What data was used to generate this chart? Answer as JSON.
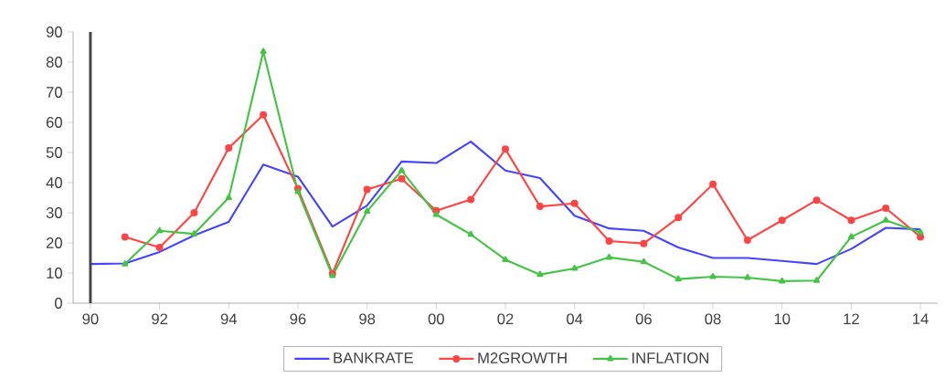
{
  "chart_data": {
    "type": "line",
    "x": [
      1990,
      1991,
      1992,
      1993,
      1994,
      1995,
      1996,
      1997,
      1998,
      1999,
      2000,
      2001,
      2002,
      2003,
      2004,
      2005,
      2006,
      2007,
      2008,
      2009,
      2010,
      2011,
      2012,
      2013,
      2014
    ],
    "series": [
      {
        "name": "BANKRATE",
        "color": "#4444ff",
        "marker": "none",
        "values": [
          13,
          13.2,
          17,
          22.5,
          27,
          46,
          42,
          25.4,
          32.4,
          47,
          46.5,
          53.6,
          44,
          41.5,
          29,
          24.8,
          24,
          18.5,
          15,
          15,
          14,
          13,
          18,
          25,
          24.5
        ]
      },
      {
        "name": "M2GROWTH",
        "color": "#ff4444",
        "marker": "circle",
        "values": [
          null,
          22,
          18.5,
          30,
          51.5,
          62.5,
          38,
          9.8,
          37.7,
          41.3,
          30.7,
          34.4,
          51.1,
          32.1,
          33.1,
          20.6,
          19.8,
          28.4,
          39.5,
          20.9,
          27.5,
          34.2,
          27.5,
          31.5,
          22
        ]
      },
      {
        "name": "INFLATION",
        "color": "#44c444",
        "marker": "triangle",
        "values": [
          null,
          13,
          24,
          23,
          35,
          83.5,
          37,
          9.1,
          30.5,
          44,
          29.4,
          22.8,
          14.4,
          9.5,
          11.5,
          15.2,
          13.7,
          8,
          8.8,
          8.5,
          7.3,
          7.5,
          22,
          27.5,
          23.5
        ]
      }
    ],
    "xlim": [
      1989.5,
      2014.5
    ],
    "xticks": [
      {
        "value": 1990,
        "label": "90"
      },
      {
        "value": 1992,
        "label": "92"
      },
      {
        "value": 1994,
        "label": "94"
      },
      {
        "value": 1996,
        "label": "96"
      },
      {
        "value": 1998,
        "label": "98"
      },
      {
        "value": 2000,
        "label": "00"
      },
      {
        "value": 2002,
        "label": "02"
      },
      {
        "value": 2004,
        "label": "04"
      },
      {
        "value": 2006,
        "label": "06"
      },
      {
        "value": 2008,
        "label": "08"
      },
      {
        "value": 2010,
        "label": "10"
      },
      {
        "value": 2012,
        "label": "12"
      },
      {
        "value": 2014,
        "label": "14"
      }
    ],
    "ylim": [
      0,
      90
    ],
    "yticks": [
      0,
      10,
      20,
      30,
      40,
      50,
      60,
      70,
      80,
      90
    ],
    "ref_lines": [
      {
        "axis": "x",
        "value": 1990,
        "color": "#444444"
      }
    ],
    "grid": false,
    "legend": "bottom"
  }
}
